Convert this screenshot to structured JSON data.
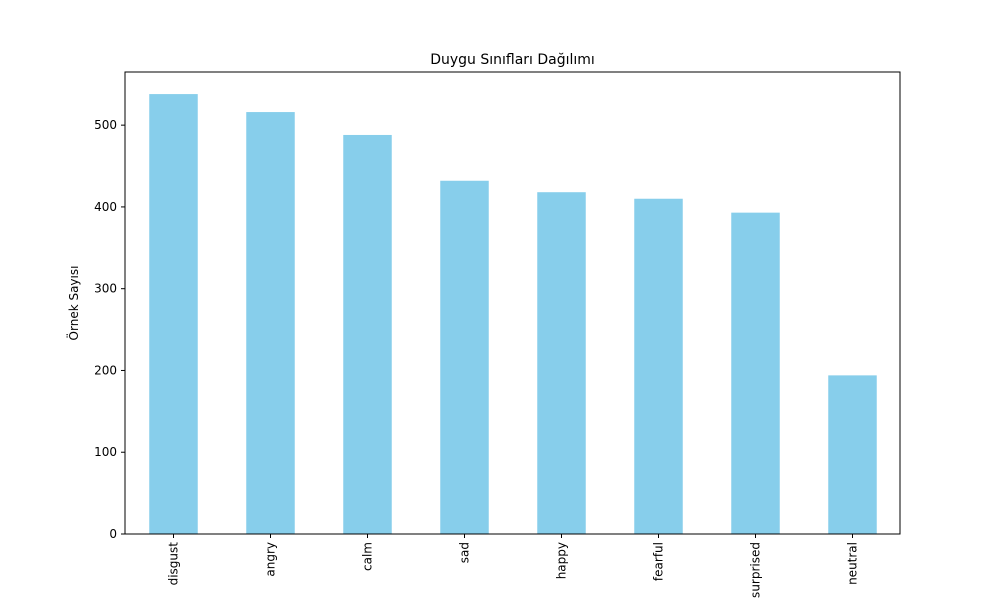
{
  "chart_data": {
    "type": "bar",
    "title": "Duygu Sınıfları Dağılımı",
    "xlabel": "",
    "ylabel": "Örnek Sayısı",
    "categories": [
      "disgust",
      "angry",
      "calm",
      "sad",
      "happy",
      "fearful",
      "surprised",
      "neutral"
    ],
    "values": [
      538,
      516,
      488,
      432,
      418,
      410,
      393,
      194
    ],
    "ylim": [
      0,
      565
    ],
    "yticks": [
      0,
      100,
      200,
      300,
      400,
      500
    ],
    "bar_color": "#87ceeb",
    "grid": false,
    "legend": "none"
  }
}
